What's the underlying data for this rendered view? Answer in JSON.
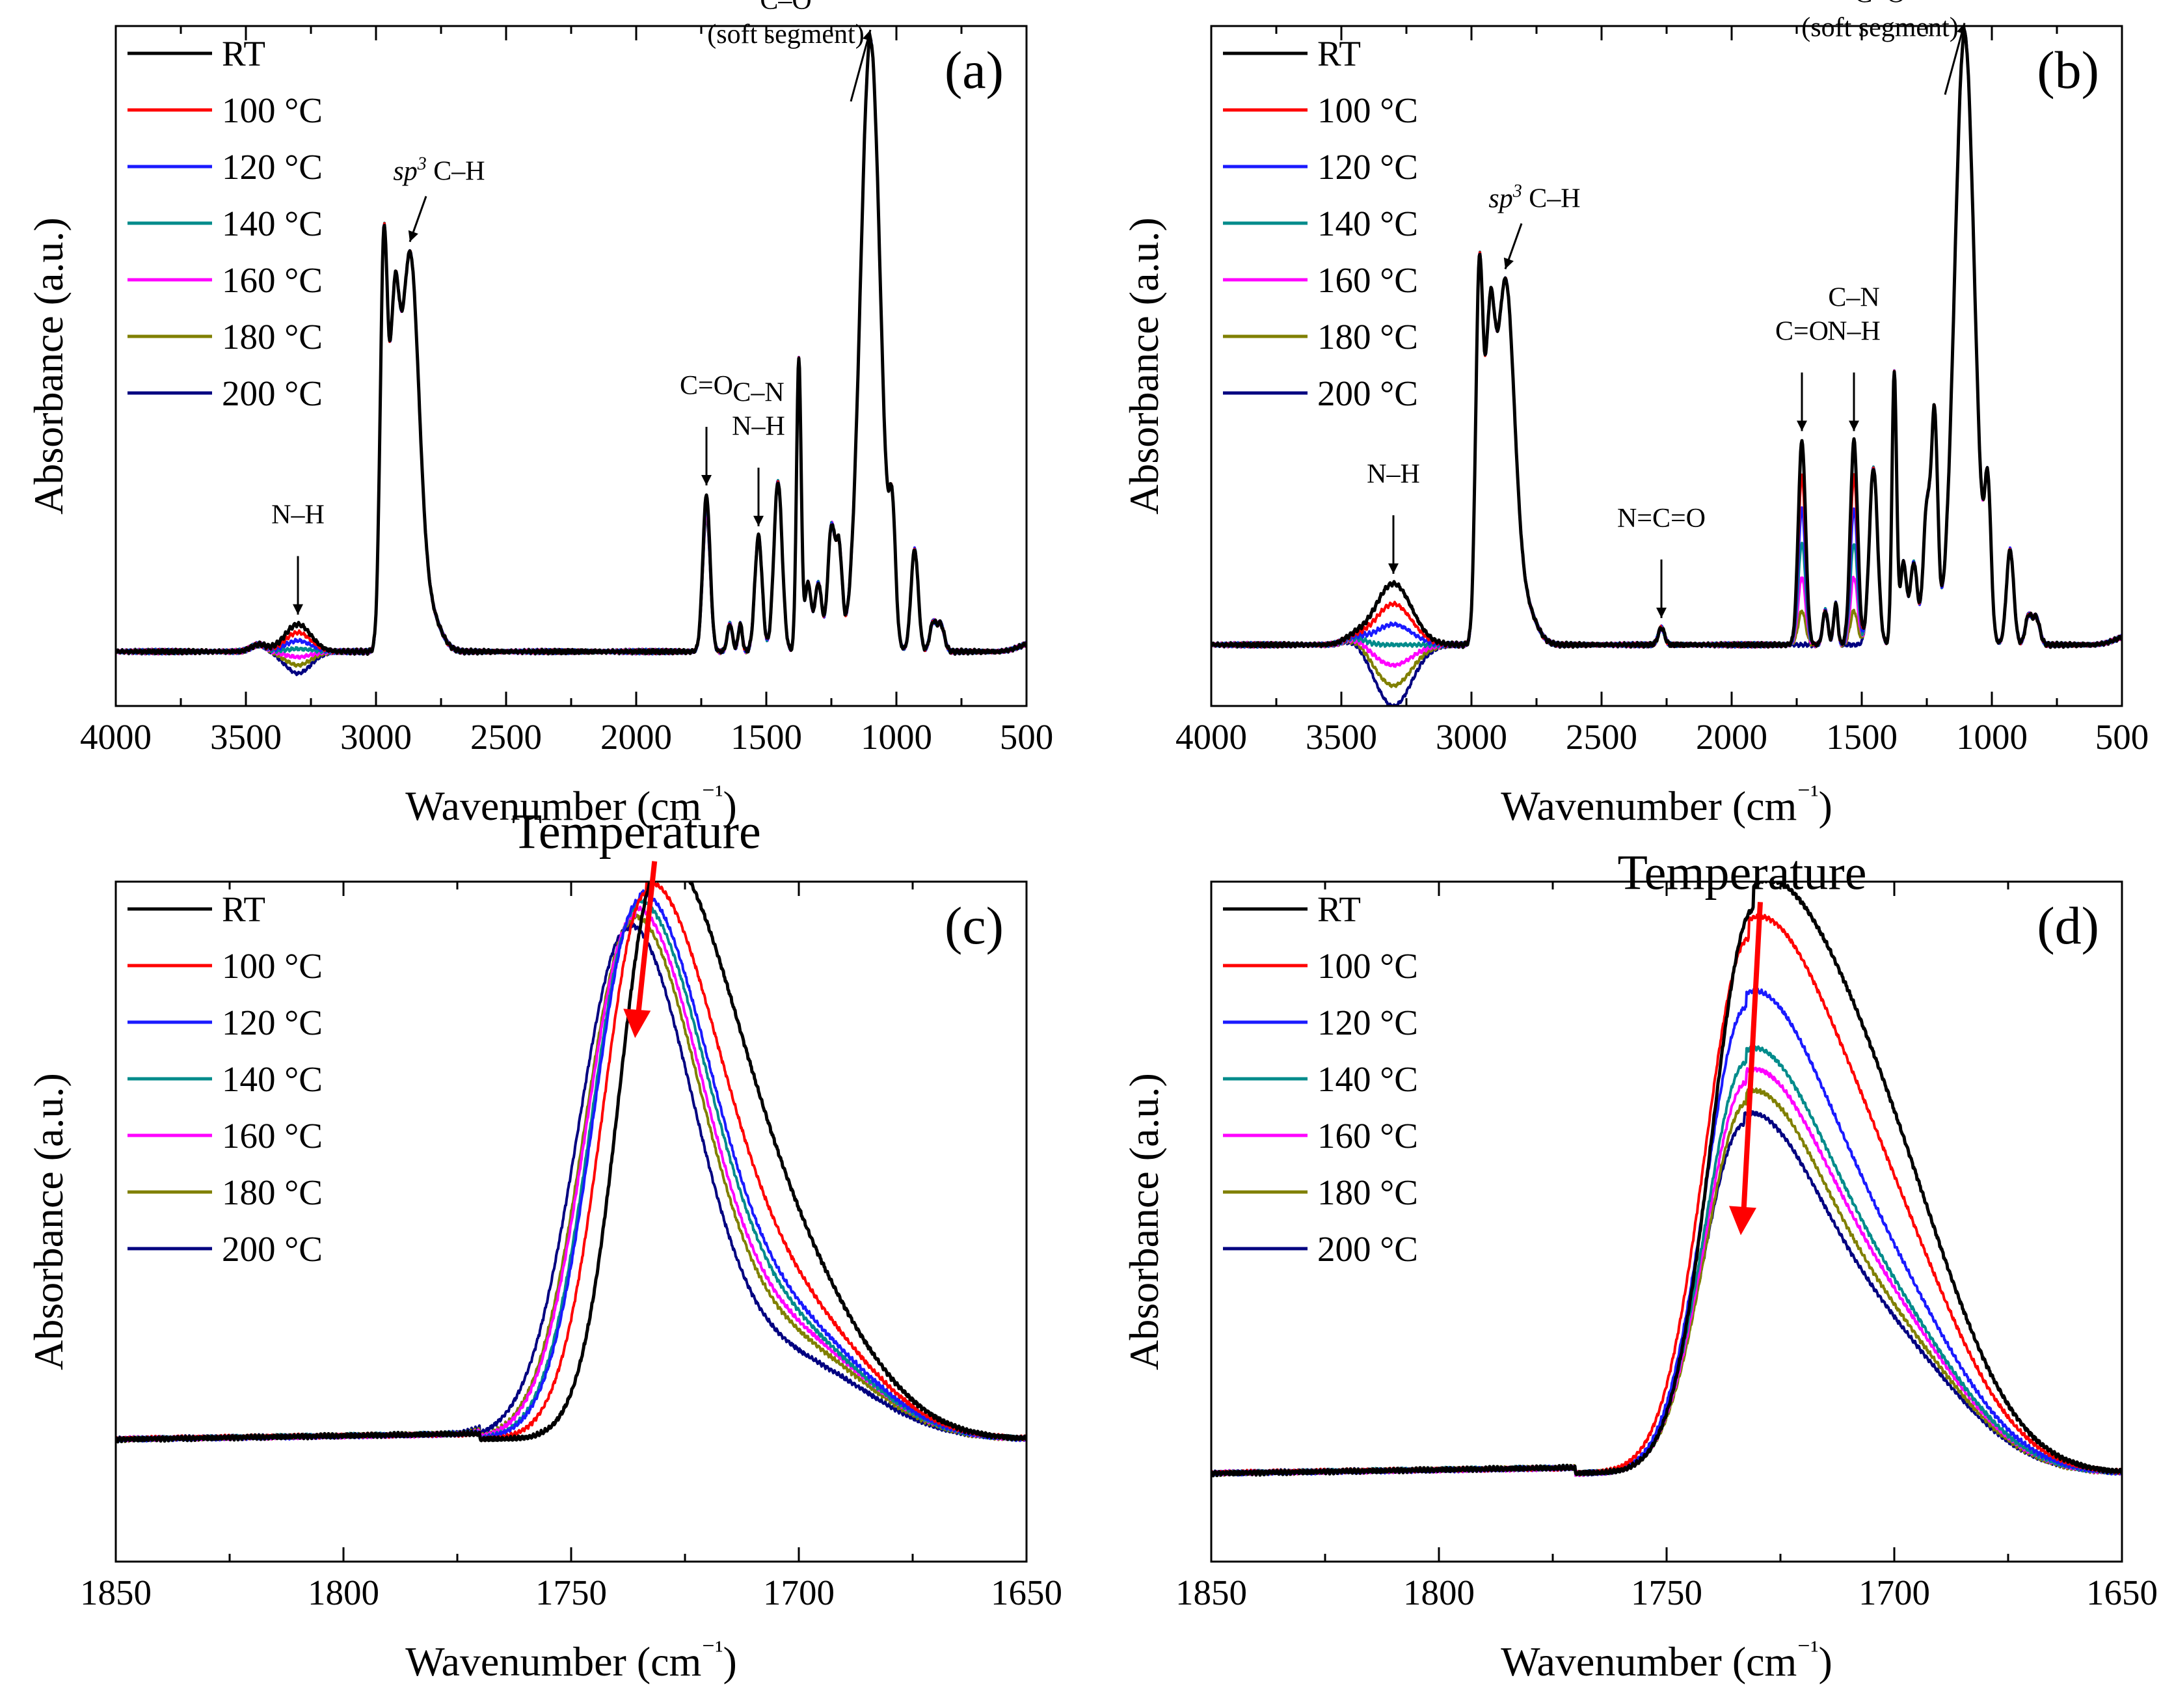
{
  "legend": {
    "items": [
      {
        "label": "RT",
        "color": "#000000"
      },
      {
        "label": "100 °C",
        "color": "#ff0000"
      },
      {
        "label": "120 °C",
        "color": "#1a1aff"
      },
      {
        "label": "140 °C",
        "color": "#008b8b"
      },
      {
        "label": "160 °C",
        "color": "#ff00ff"
      },
      {
        "label": "180 °C",
        "color": "#808000"
      },
      {
        "label": "200 °C",
        "color": "#000080"
      }
    ]
  },
  "chart_data": [
    {
      "panel": "(a)",
      "type": "line",
      "xlabel": "Wavenumber (cm⁻¹)",
      "ylabel": "Absorbance (a.u.)",
      "xlim": [
        4000,
        500
      ],
      "ylim": [
        0,
        1
      ],
      "xticks": [
        4000,
        3500,
        3000,
        2500,
        2000,
        1500,
        1000,
        500
      ],
      "baseline": 0.08,
      "peaks": [
        {
          "x": 3450,
          "w": 30,
          "h": 0.01
        },
        {
          "x": 3300,
          "w": 50,
          "h": 0.04,
          "temp": -0.012
        },
        {
          "x": 2970,
          "w": 14,
          "h": 0.58
        },
        {
          "x": 2930,
          "w": 18,
          "h": 0.4
        },
        {
          "x": 2870,
          "w": 35,
          "h": 0.58
        },
        {
          "x": 2790,
          "w": 40,
          "h": 0.05
        },
        {
          "x": 1730,
          "w": 14,
          "h": 0.23,
          "temp": -0.005
        },
        {
          "x": 1640,
          "w": 10,
          "h": 0.04
        },
        {
          "x": 1600,
          "w": 8,
          "h": 0.04
        },
        {
          "x": 1530,
          "w": 14,
          "h": 0.17
        },
        {
          "x": 1455,
          "w": 16,
          "h": 0.25
        },
        {
          "x": 1375,
          "w": 9,
          "h": 0.43
        },
        {
          "x": 1340,
          "w": 12,
          "h": 0.1
        },
        {
          "x": 1300,
          "w": 14,
          "h": 0.1
        },
        {
          "x": 1250,
          "w": 14,
          "h": 0.18
        },
        {
          "x": 1220,
          "w": 12,
          "h": 0.14
        },
        {
          "x": 1100,
          "w": 38,
          "h": 0.9
        },
        {
          "x": 1015,
          "w": 12,
          "h": 0.16
        },
        {
          "x": 930,
          "w": 14,
          "h": 0.15
        },
        {
          "x": 860,
          "w": 12,
          "h": 0.04
        },
        {
          "x": 830,
          "w": 14,
          "h": 0.04
        }
      ],
      "annotations": [
        {
          "lines": [
            "N–H"
          ],
          "peak_x": 3300
        },
        {
          "lines": [
            "sp³ C–H"
          ],
          "peak_x": 2870
        },
        {
          "lines": [
            "C=O"
          ],
          "peak_x": 1730
        },
        {
          "lines": [
            "C–N",
            "N–H"
          ],
          "peak_x": 1530
        },
        {
          "lines": [
            "C–O",
            "(soft segment)"
          ],
          "peak_x": 1100
        }
      ]
    },
    {
      "panel": "(b)",
      "type": "line",
      "xlabel": "Wavenumber (cm⁻¹)",
      "ylabel": "Absorbance (a.u.)",
      "xlim": [
        4000,
        500
      ],
      "ylim": [
        0,
        1
      ],
      "xticks": [
        4000,
        3500,
        3000,
        2500,
        2000,
        1500,
        1000,
        500
      ],
      "baseline": 0.09,
      "peaks": [
        {
          "x": 3450,
          "w": 40,
          "h": 0.01
        },
        {
          "x": 3300,
          "w": 70,
          "h": 0.09,
          "temp": -0.03
        },
        {
          "x": 2970,
          "w": 14,
          "h": 0.53
        },
        {
          "x": 2930,
          "w": 18,
          "h": 0.38
        },
        {
          "x": 2870,
          "w": 35,
          "h": 0.53
        },
        {
          "x": 2790,
          "w": 40,
          "h": 0.05
        },
        {
          "x": 2270,
          "w": 12,
          "h": 0.025
        },
        {
          "x": 1730,
          "w": 14,
          "h": 0.3,
          "temp": -0.05
        },
        {
          "x": 1640,
          "w": 10,
          "h": 0.05
        },
        {
          "x": 1600,
          "w": 8,
          "h": 0.06
        },
        {
          "x": 1530,
          "w": 14,
          "h": 0.3,
          "temp": -0.05
        },
        {
          "x": 1455,
          "w": 16,
          "h": 0.26
        },
        {
          "x": 1375,
          "w": 9,
          "h": 0.4
        },
        {
          "x": 1340,
          "w": 12,
          "h": 0.12
        },
        {
          "x": 1300,
          "w": 14,
          "h": 0.12
        },
        {
          "x": 1250,
          "w": 14,
          "h": 0.2
        },
        {
          "x": 1220,
          "w": 12,
          "h": 0.32
        },
        {
          "x": 1105,
          "w": 38,
          "h": 0.9
        },
        {
          "x": 1015,
          "w": 12,
          "h": 0.2
        },
        {
          "x": 930,
          "w": 14,
          "h": 0.14
        },
        {
          "x": 860,
          "w": 12,
          "h": 0.04
        },
        {
          "x": 830,
          "w": 14,
          "h": 0.04
        }
      ],
      "annotations": [
        {
          "lines": [
            "N–H"
          ],
          "peak_x": 3300
        },
        {
          "lines": [
            "sp³ C–H"
          ],
          "peak_x": 2870
        },
        {
          "lines": [
            "N=C=O"
          ],
          "peak_x": 2270
        },
        {
          "lines": [
            "C=O"
          ],
          "peak_x": 1730
        },
        {
          "lines": [
            "C–N",
            "N–H"
          ],
          "peak_x": 1530
        },
        {
          "lines": [
            "C–O",
            "(soft segment)"
          ],
          "peak_x": 1105
        }
      ]
    },
    {
      "panel": "(c)",
      "type": "line",
      "xlabel": "Wavenumber (cm⁻¹)",
      "ylabel": "Absorbance (a.u.)",
      "xlim": [
        1850,
        1650
      ],
      "ylim": [
        0,
        1
      ],
      "xticks": [
        1850,
        1800,
        1750,
        1700,
        1650
      ],
      "baseline": 0.18,
      "annotation": "Temperature",
      "series": [
        {
          "name": "RT",
          "peak_x": 1731,
          "peak_h": 0.83,
          "wl": 8.5,
          "wr": 17,
          "s": 0.22
        },
        {
          "name": "100 °C",
          "peak_x": 1733.5,
          "peak_h": 0.8,
          "wl": 9.5,
          "wr": 16,
          "s": 0.2
        },
        {
          "name": "120 °C",
          "peak_x": 1735,
          "peak_h": 0.79,
          "wl": 10,
          "wr": 15.5,
          "s": 0.18
        },
        {
          "name": "140 °C",
          "peak_x": 1735.5,
          "peak_h": 0.78,
          "wl": 10,
          "wr": 15.5,
          "s": 0.17
        },
        {
          "name": "160 °C",
          "peak_x": 1736,
          "peak_h": 0.77,
          "wl": 10.5,
          "wr": 15,
          "s": 0.17
        },
        {
          "name": "180 °C",
          "peak_x": 1736.5,
          "peak_h": 0.76,
          "wl": 10.5,
          "wr": 15,
          "s": 0.16
        },
        {
          "name": "200 °C",
          "peak_x": 1737.5,
          "peak_h": 0.75,
          "wl": 11,
          "wr": 14.5,
          "s": 0.14
        }
      ]
    },
    {
      "panel": "(d)",
      "type": "line",
      "xlabel": "Wavenumber (cm⁻¹)",
      "ylabel": "Absorbance (a.u.)",
      "xlim": [
        1850,
        1650
      ],
      "ylim": [
        0,
        1
      ],
      "xticks": [
        1850,
        1800,
        1750,
        1700,
        1650
      ],
      "baseline": 0.13,
      "annotation": "Temperature",
      "series": [
        {
          "name": "RT",
          "peak_x": 1731,
          "peak_h": 0.82,
          "wl": 9,
          "wr": 20,
          "s": 0.35
        },
        {
          "name": "100 °C",
          "peak_x": 1732,
          "peak_h": 0.78,
          "wl": 9.5,
          "wr": 19,
          "s": 0.32
        },
        {
          "name": "120 °C",
          "peak_x": 1732.5,
          "peak_h": 0.68,
          "wl": 9,
          "wr": 18,
          "s": 0.3
        },
        {
          "name": "140 °C",
          "peak_x": 1732.5,
          "peak_h": 0.6,
          "wl": 9,
          "wr": 17.5,
          "s": 0.3
        },
        {
          "name": "160 °C",
          "peak_x": 1732.5,
          "peak_h": 0.57,
          "wl": 9,
          "wr": 17.5,
          "s": 0.3
        },
        {
          "name": "180 °C",
          "peak_x": 1732.5,
          "peak_h": 0.54,
          "wl": 9,
          "wr": 17,
          "s": 0.3
        },
        {
          "name": "200 °C",
          "peak_x": 1733,
          "peak_h": 0.51,
          "wl": 9,
          "wr": 17,
          "s": 0.3
        }
      ]
    }
  ]
}
